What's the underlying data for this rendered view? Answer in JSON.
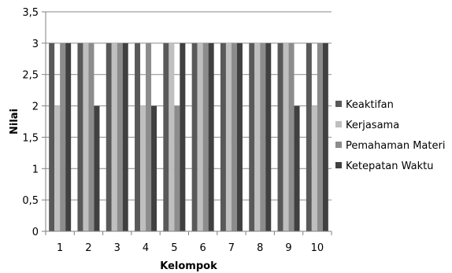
{
  "chart_data": {
    "type": "bar",
    "title": "",
    "xlabel": "Kelompok",
    "ylabel": "Nilai",
    "ylim": [
      0,
      3.5
    ],
    "yticks": [
      "0",
      "0,5",
      "1",
      "1,5",
      "2",
      "2,5",
      "3",
      "3,5"
    ],
    "ytick_values": [
      0,
      0.5,
      1,
      1.5,
      2,
      2.5,
      3,
      3.5
    ],
    "categories": [
      "1",
      "2",
      "3",
      "4",
      "5",
      "6",
      "7",
      "8",
      "9",
      "10"
    ],
    "grid": true,
    "legend_position": "right",
    "series": [
      {
        "name": "Keaktifan",
        "color": "#595959",
        "values": [
          3,
          3,
          3,
          3,
          3,
          3,
          3,
          3,
          3,
          3
        ]
      },
      {
        "name": "Kerjasama",
        "color": "#bfbfbf",
        "values": [
          2,
          3,
          3,
          2,
          3,
          3,
          3,
          3,
          3,
          2
        ]
      },
      {
        "name": "Pemahaman Materi",
        "color": "#8c8c8c",
        "values": [
          3,
          3,
          3,
          3,
          2,
          3,
          3,
          3,
          3,
          3
        ]
      },
      {
        "name": "Ketepatan Waktu",
        "color": "#404040",
        "values": [
          3,
          2,
          3,
          2,
          3,
          3,
          3,
          3,
          2,
          3
        ]
      }
    ]
  }
}
